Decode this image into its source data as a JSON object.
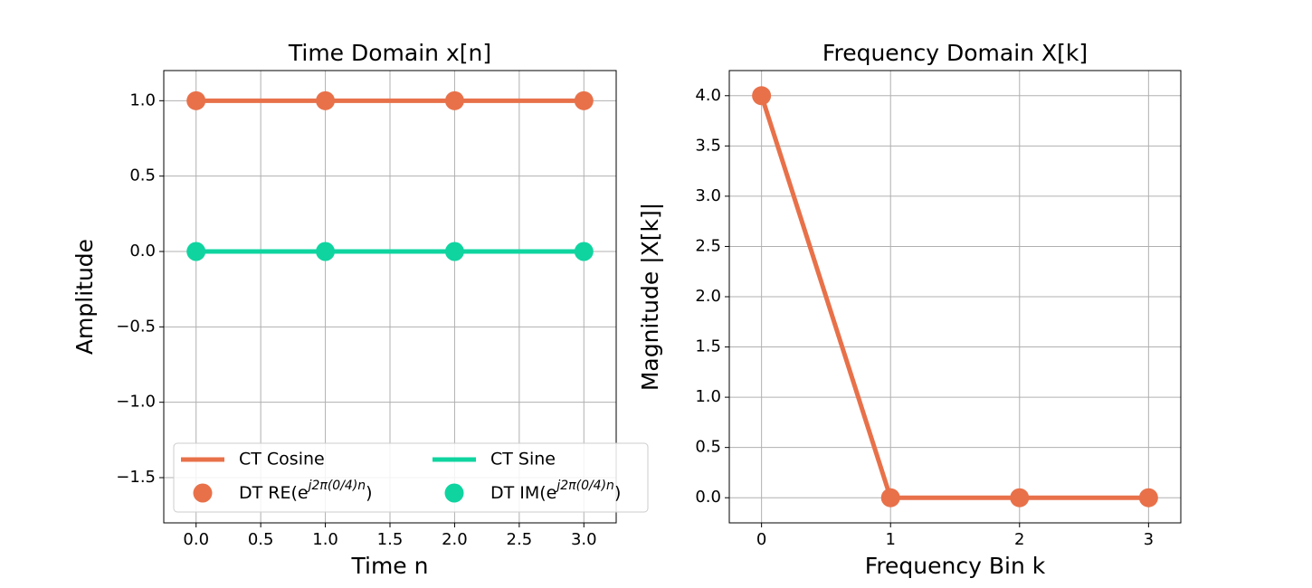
{
  "chart_data": [
    {
      "type": "line",
      "title": "Time Domain x[n]",
      "xlabel": "Time n",
      "ylabel": "Amplitude",
      "x": [
        0,
        1,
        2,
        3
      ],
      "series": [
        {
          "name": "CT Cosine",
          "mode": "line",
          "color": "#e8714a",
          "values": [
            1,
            1,
            1,
            1
          ]
        },
        {
          "name": "CT Sine",
          "mode": "line",
          "color": "#0fd4a0",
          "values": [
            0,
            0,
            0,
            0
          ]
        },
        {
          "name": "DT RE(ej2π(0/4)n)",
          "mode": "markers",
          "color": "#e8714a",
          "values": [
            1,
            1,
            1,
            1
          ]
        },
        {
          "name": "DT IM(ej2π(0/4)n)",
          "mode": "markers",
          "color": "#0fd4a0",
          "values": [
            0,
            0,
            0,
            0
          ]
        }
      ],
      "xlim": [
        -0.25,
        3.25
      ],
      "xticks": [
        {
          "value": 0,
          "label": "0.0"
        },
        0.5,
        {
          "value": 1,
          "label": "1.0"
        },
        1.5,
        {
          "value": 2,
          "label": "2.0"
        },
        2.5,
        {
          "value": 3,
          "label": "3.0"
        }
      ],
      "ylim": [
        -1.8,
        1.2
      ],
      "yticks": [
        {
          "value": -1.5,
          "label": "−1.5"
        },
        {
          "value": -1,
          "label": "−1.0"
        },
        {
          "value": -0.5,
          "label": "−0.5"
        },
        {
          "value": 0,
          "label": "0.0"
        },
        0.5,
        {
          "value": 1,
          "label": "1.0"
        }
      ],
      "grid": true,
      "legend": "lower left"
    },
    {
      "type": "line",
      "title": "Frequency Domain X[k]",
      "xlabel": "Frequency Bin k",
      "ylabel": "Magnitude |X[k]|",
      "x": [
        0,
        1,
        2,
        3
      ],
      "series": [
        {
          "mode": "line+markers",
          "color": "#e8714a",
          "values": [
            4,
            0,
            0,
            0
          ]
        }
      ],
      "xlim": [
        -0.25,
        3.25
      ],
      "xticks": [
        0,
        1,
        2,
        3
      ],
      "ylim": [
        -0.25,
        4.25
      ],
      "yticks": [
        {
          "value": 0,
          "label": "0.0"
        },
        0.5,
        {
          "value": 1,
          "label": "1.0"
        },
        1.5,
        {
          "value": 2,
          "label": "2.0"
        },
        2.5,
        {
          "value": 3,
          "label": "3.0"
        },
        3.5,
        {
          "value": 4,
          "label": "4.0"
        }
      ],
      "grid": true
    }
  ]
}
